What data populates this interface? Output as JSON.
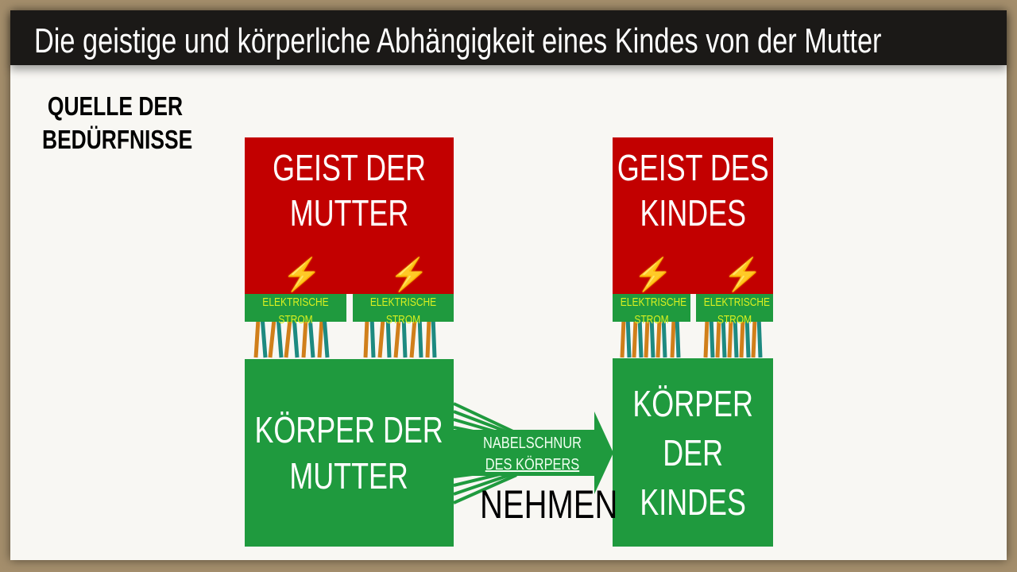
{
  "title": "Die geistige und körperliche Abhängigkeit eines Kindes von der Mutter",
  "source_label": {
    "line1": "QUELLE DER",
    "line2": "BEDÜRFNISSE"
  },
  "mother": {
    "mind": {
      "line1": "GEIST DER",
      "line2": "MUTTER"
    },
    "body": {
      "line1": "KÖRPER DER",
      "line2": "MUTTER"
    }
  },
  "child": {
    "mind": {
      "line1": "GEIST DES",
      "line2": "KINDES"
    },
    "body": {
      "line1": "KÖRPER",
      "line2": "DER",
      "line3": "KINDES"
    }
  },
  "connector": {
    "line1": "ELEKTRISCHE",
    "line2": "STROM",
    "icon": "lightning-bolt-icon"
  },
  "umbilical": {
    "line1": "NABELSCHNUR",
    "line2": "DES KÖRPERS"
  },
  "action": "NEHMEN",
  "colors": {
    "mind": "#c20000",
    "body": "#1f9a3e",
    "connector_text": "#d8f020",
    "bolt": "#f7c900"
  }
}
